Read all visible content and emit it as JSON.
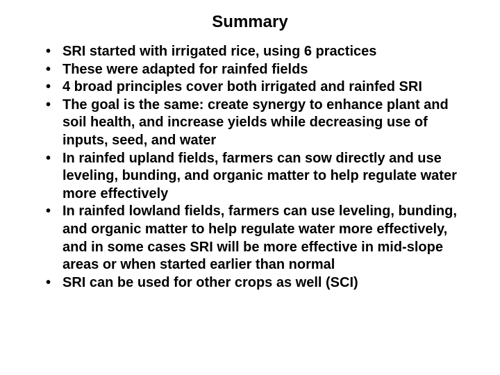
{
  "title": "Summary",
  "bullets": {
    "item0": "SRI started with irrigated rice, using 6 practices",
    "item1": "These were adapted for rainfed fields",
    "item2": "4 broad principles cover both irrigated and rainfed SRI",
    "item3": "The goal is the same: create synergy to enhance plant and soil health, and increase yields while decreasing use of inputs, seed, and water",
    "item4": "In rainfed upland fields, farmers can sow directly and use leveling, bunding, and organic matter to help regulate water more effectively",
    "item5": "In rainfed lowland fields, farmers can use leveling, bunding, and organic matter to help regulate water more effectively, and in some cases SRI will be more effective in mid-slope areas or when started earlier than normal",
    "item6": "SRI can be used for other crops as well (SCI)"
  },
  "colors": {
    "background": "#ffffff",
    "text": "#000000"
  },
  "typography": {
    "title_fontsize": 24,
    "body_fontsize": 20,
    "font_family": "Arial",
    "title_weight": "bold",
    "body_weight": "bold"
  }
}
